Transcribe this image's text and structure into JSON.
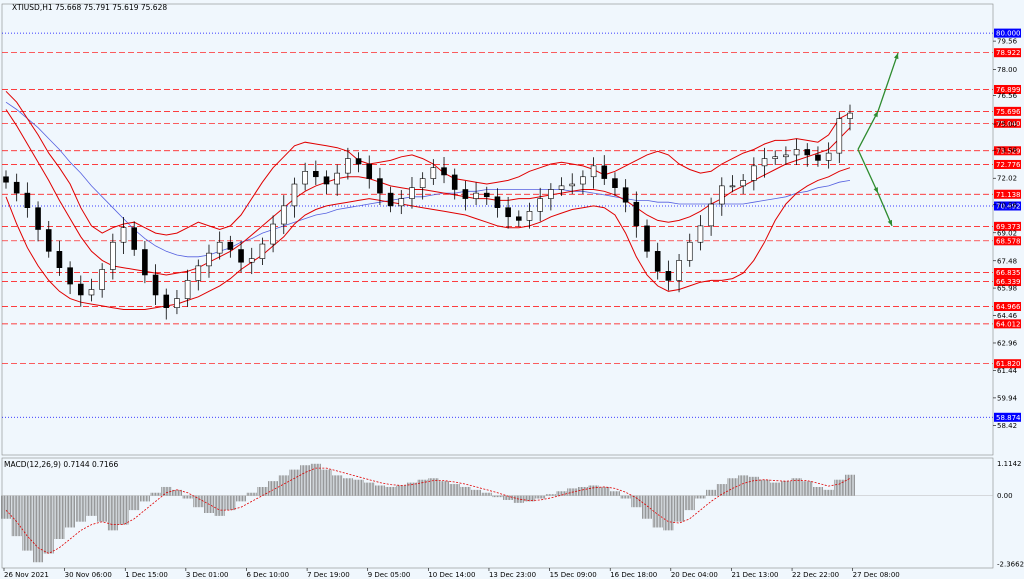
{
  "chart_data": {
    "type": "candlestick",
    "symbol_header": "XTIUSD,H1  75.668 75.791 75.619 75.628",
    "ylim": [
      56.8,
      81.6
    ],
    "y_ticks": [
      79.56,
      78.0,
      76.56,
      75.0,
      73.56,
      72.02,
      70.56,
      69.02,
      67.48,
      65.98,
      64.46,
      62.96,
      61.44,
      59.94,
      58.42
    ],
    "x_labels": [
      "26 Nov 2021",
      "30 Nov 06:00",
      "1 Dec 15:00",
      "3 Dec 01:00",
      "6 Dec 10:00",
      "7 Dec 19:00",
      "9 Dec 05:00",
      "10 Dec 14:00",
      "13 Dec 23:00",
      "15 Dec 09:00",
      "16 Dec 18:00",
      "20 Dec 04:00",
      "21 Dec 13:00",
      "22 Dec 22:00",
      "27 Dec 08:00"
    ],
    "levels": [
      {
        "value": 80.0,
        "label": "80.000",
        "color": "#0000ff",
        "style": "dotted"
      },
      {
        "value": 78.922,
        "label": "78.922",
        "color": "#ff0000",
        "style": "dashed"
      },
      {
        "value": 76.899,
        "label": "76.899",
        "color": "#ff0000",
        "style": "dashed"
      },
      {
        "value": 75.696,
        "label": "75.696",
        "color": "#ff0000",
        "style": "dashed"
      },
      {
        "value": 75.04,
        "label": "75.040",
        "color": "#ff0000",
        "style": "dashed"
      },
      {
        "value": 73.529,
        "label": "73.529",
        "color": "#ff0000",
        "style": "dashed"
      },
      {
        "value": 72.776,
        "label": "72.776",
        "color": "#ff0000",
        "style": "dashed"
      },
      {
        "value": 71.138,
        "label": "71.138",
        "color": "#ff0000",
        "style": "dashed"
      },
      {
        "value": 70.492,
        "label": "70.492",
        "color": "#0000ff",
        "style": "dotted"
      },
      {
        "value": 69.373,
        "label": "69.373",
        "color": "#ff0000",
        "style": "dashed"
      },
      {
        "value": 68.578,
        "label": "68.578",
        "color": "#ff0000",
        "style": "dashed"
      },
      {
        "value": 66.835,
        "label": "66.835",
        "color": "#ff0000",
        "style": "dashed"
      },
      {
        "value": 66.339,
        "label": "66.339",
        "color": "#ff0000",
        "style": "dashed"
      },
      {
        "value": 64.966,
        "label": "64.966",
        "color": "#ff0000",
        "style": "dashed"
      },
      {
        "value": 64.012,
        "label": "64.012",
        "color": "#ff0000",
        "style": "dashed"
      },
      {
        "value": 61.82,
        "label": "61.820",
        "color": "#ff0000",
        "style": "dashed"
      },
      {
        "value": 58.874,
        "label": "58.874",
        "color": "#0000ff",
        "style": "dotted"
      }
    ],
    "price": [
      71.8,
      71.2,
      70.4,
      69.2,
      68.0,
      67.1,
      66.2,
      65.6,
      65.9,
      67.0,
      68.5,
      69.3,
      68.1,
      66.7,
      65.6,
      64.9,
      65.4,
      66.4,
      67.2,
      67.9,
      68.5,
      68.1,
      67.4,
      67.6,
      68.4,
      69.5,
      70.5,
      71.7,
      72.4,
      72.1,
      71.7,
      72.3,
      73.1,
      72.8,
      72.0,
      71.2,
      70.5,
      70.9,
      71.5,
      72.0,
      72.6,
      72.2,
      71.4,
      70.9,
      71.2,
      71.0,
      70.4,
      69.9,
      69.7,
      70.2,
      70.9,
      71.4,
      71.6,
      71.7,
      72.1,
      72.7,
      72.0,
      71.5,
      70.7,
      69.4,
      68.0,
      66.9,
      66.4,
      67.5,
      68.5,
      69.4,
      70.6,
      71.6,
      71.6,
      71.9,
      72.7,
      73.1,
      73.2,
      73.3,
      73.6,
      73.3,
      73.0,
      73.4,
      75.3,
      75.6
    ],
    "bb_upper": [
      76.8,
      76.2,
      75.3,
      74.4,
      73.4,
      72.6,
      71.7,
      70.4,
      69.4,
      69.0,
      69.3,
      69.5,
      69.6,
      69.3,
      69.0,
      68.9,
      69.0,
      69.3,
      69.6,
      69.4,
      69.2,
      69.4,
      70.0,
      70.9,
      71.8,
      72.6,
      73.2,
      73.8,
      74.0,
      73.9,
      73.8,
      73.7,
      73.5,
      73.0,
      72.8,
      72.9,
      73.0,
      73.2,
      73.3,
      73.1,
      72.8,
      72.3,
      72.0,
      71.9,
      71.8,
      71.7,
      71.8,
      71.9,
      72.1,
      72.4,
      72.6,
      72.8,
      72.9,
      72.8,
      72.7,
      72.5,
      72.2,
      72.4,
      72.7,
      73.0,
      73.3,
      73.5,
      73.3,
      72.8,
      72.5,
      72.3,
      72.4,
      72.8,
      73.1,
      73.4,
      73.6,
      73.9,
      74.1,
      74.1,
      74.2,
      74.1,
      74.0,
      74.4,
      75.3,
      75.6
    ],
    "bb_mid": [
      75.8,
      74.9,
      73.9,
      72.9,
      71.9,
      70.8,
      69.8,
      68.8,
      68.0,
      67.5,
      67.2,
      67.1,
      67.0,
      66.9,
      66.8,
      66.7,
      66.8,
      66.9,
      67.1,
      67.4,
      67.7,
      68.0,
      68.4,
      68.9,
      69.4,
      69.9,
      70.4,
      70.9,
      71.3,
      71.6,
      71.8,
      72.0,
      72.1,
      72.1,
      72.0,
      71.8,
      71.6,
      71.5,
      71.4,
      71.4,
      71.3,
      71.2,
      71.1,
      71.0,
      70.9,
      70.9,
      70.8,
      70.8,
      70.9,
      70.9,
      71.0,
      71.1,
      71.2,
      71.3,
      71.4,
      71.4,
      71.3,
      71.1,
      70.8,
      70.4,
      70.0,
      69.7,
      69.6,
      69.7,
      69.9,
      70.2,
      70.6,
      70.9,
      71.3,
      71.6,
      71.9,
      72.2,
      72.5,
      72.8,
      73.0,
      73.2,
      73.4,
      73.6,
      74.2,
      74.8
    ],
    "bb_lower": [
      71.0,
      69.5,
      68.2,
      67.2,
      66.4,
      65.8,
      65.4,
      65.2,
      65.1,
      65.0,
      64.9,
      64.8,
      64.8,
      64.8,
      64.9,
      65.0,
      65.1,
      65.3,
      65.5,
      65.8,
      66.1,
      66.5,
      67.0,
      67.4,
      67.8,
      68.3,
      68.8,
      69.5,
      70.0,
      70.3,
      70.5,
      70.6,
      70.7,
      70.8,
      70.9,
      70.8,
      70.7,
      70.6,
      70.5,
      70.4,
      70.3,
      70.2,
      70.1,
      70.0,
      69.8,
      69.6,
      69.4,
      69.3,
      69.3,
      69.4,
      69.6,
      69.9,
      70.1,
      70.3,
      70.4,
      70.5,
      70.4,
      70.0,
      69.0,
      67.7,
      66.7,
      66.1,
      65.8,
      65.9,
      66.1,
      66.3,
      66.4,
      66.4,
      66.5,
      66.8,
      67.5,
      68.5,
      69.7,
      70.6,
      71.2,
      71.6,
      71.9,
      72.1,
      72.4,
      72.6
    ],
    "ma_blue": [
      76.2,
      75.8,
      75.3,
      74.8,
      74.2,
      73.6,
      72.9,
      72.3,
      71.6,
      71.0,
      70.4,
      69.8,
      69.2,
      68.7,
      68.3,
      68.0,
      67.8,
      67.7,
      67.7,
      67.8,
      68.0,
      68.2,
      68.5,
      68.7,
      69.0,
      69.2,
      69.4,
      69.6,
      69.8,
      70.0,
      70.1,
      70.3,
      70.4,
      70.5,
      70.6,
      70.7,
      70.8,
      70.9,
      71.0,
      71.0,
      71.1,
      71.2,
      71.2,
      71.3,
      71.3,
      71.4,
      71.4,
      71.4,
      71.4,
      71.4,
      71.4,
      71.4,
      71.4,
      71.3,
      71.3,
      71.2,
      71.1,
      71.0,
      70.9,
      70.8,
      70.8,
      70.7,
      70.7,
      70.6,
      70.6,
      70.6,
      70.6,
      70.6,
      70.6,
      70.6,
      70.7,
      70.8,
      70.9,
      71.0,
      71.2,
      71.3,
      71.5,
      71.6,
      71.8,
      71.9
    ],
    "macd": {
      "label": "MACD(12,26,9) 0.7144 0.7166",
      "ylim": [
        -2.5,
        1.3
      ],
      "y_ticks": [
        1.1142,
        0.0,
        -2.3662
      ],
      "hist": [
        -0.8,
        -1.4,
        -1.9,
        -2.3,
        -2.0,
        -1.5,
        -1.1,
        -0.9,
        -0.7,
        -0.9,
        -1.2,
        -1.0,
        -0.5,
        -0.2,
        0.1,
        0.3,
        0.2,
        -0.1,
        -0.4,
        -0.6,
        -0.7,
        -0.5,
        -0.2,
        0.1,
        0.3,
        0.5,
        0.7,
        0.9,
        1.05,
        1.1,
        0.9,
        0.7,
        0.6,
        0.55,
        0.45,
        0.35,
        0.3,
        0.35,
        0.45,
        0.55,
        0.6,
        0.5,
        0.4,
        0.3,
        0.2,
        0.1,
        -0.05,
        -0.15,
        -0.25,
        -0.2,
        -0.1,
        0.05,
        0.15,
        0.25,
        0.3,
        0.35,
        0.3,
        0.15,
        -0.1,
        -0.4,
        -0.8,
        -1.1,
        -1.2,
        -0.9,
        -0.5,
        -0.1,
        0.2,
        0.4,
        0.6,
        0.7,
        0.65,
        0.55,
        0.45,
        0.5,
        0.6,
        0.5,
        0.3,
        0.2,
        0.55,
        0.72
      ],
      "signal": [
        -0.5,
        -0.9,
        -1.4,
        -1.8,
        -2.0,
        -1.8,
        -1.5,
        -1.2,
        -1.0,
        -0.9,
        -1.0,
        -1.0,
        -0.8,
        -0.5,
        -0.2,
        0.1,
        0.2,
        0.1,
        -0.1,
        -0.3,
        -0.5,
        -0.5,
        -0.4,
        -0.2,
        0.0,
        0.2,
        0.4,
        0.6,
        0.8,
        0.95,
        0.95,
        0.85,
        0.75,
        0.65,
        0.55,
        0.45,
        0.38,
        0.35,
        0.38,
        0.45,
        0.52,
        0.52,
        0.47,
        0.4,
        0.3,
        0.2,
        0.1,
        -0.02,
        -0.12,
        -0.17,
        -0.15,
        -0.08,
        0.02,
        0.12,
        0.2,
        0.27,
        0.3,
        0.25,
        0.12,
        -0.08,
        -0.35,
        -0.65,
        -0.9,
        -0.95,
        -0.8,
        -0.5,
        -0.2,
        0.05,
        0.25,
        0.42,
        0.52,
        0.55,
        0.52,
        0.5,
        0.53,
        0.52,
        0.43,
        0.33,
        0.4,
        0.6
      ]
    },
    "arrows": [
      {
        "from": 73.6,
        "to": 75.7
      },
      {
        "from": 75.7,
        "to": 78.9
      },
      {
        "from": 73.6,
        "to": 71.2
      },
      {
        "from": 71.2,
        "to": 69.4
      }
    ]
  }
}
